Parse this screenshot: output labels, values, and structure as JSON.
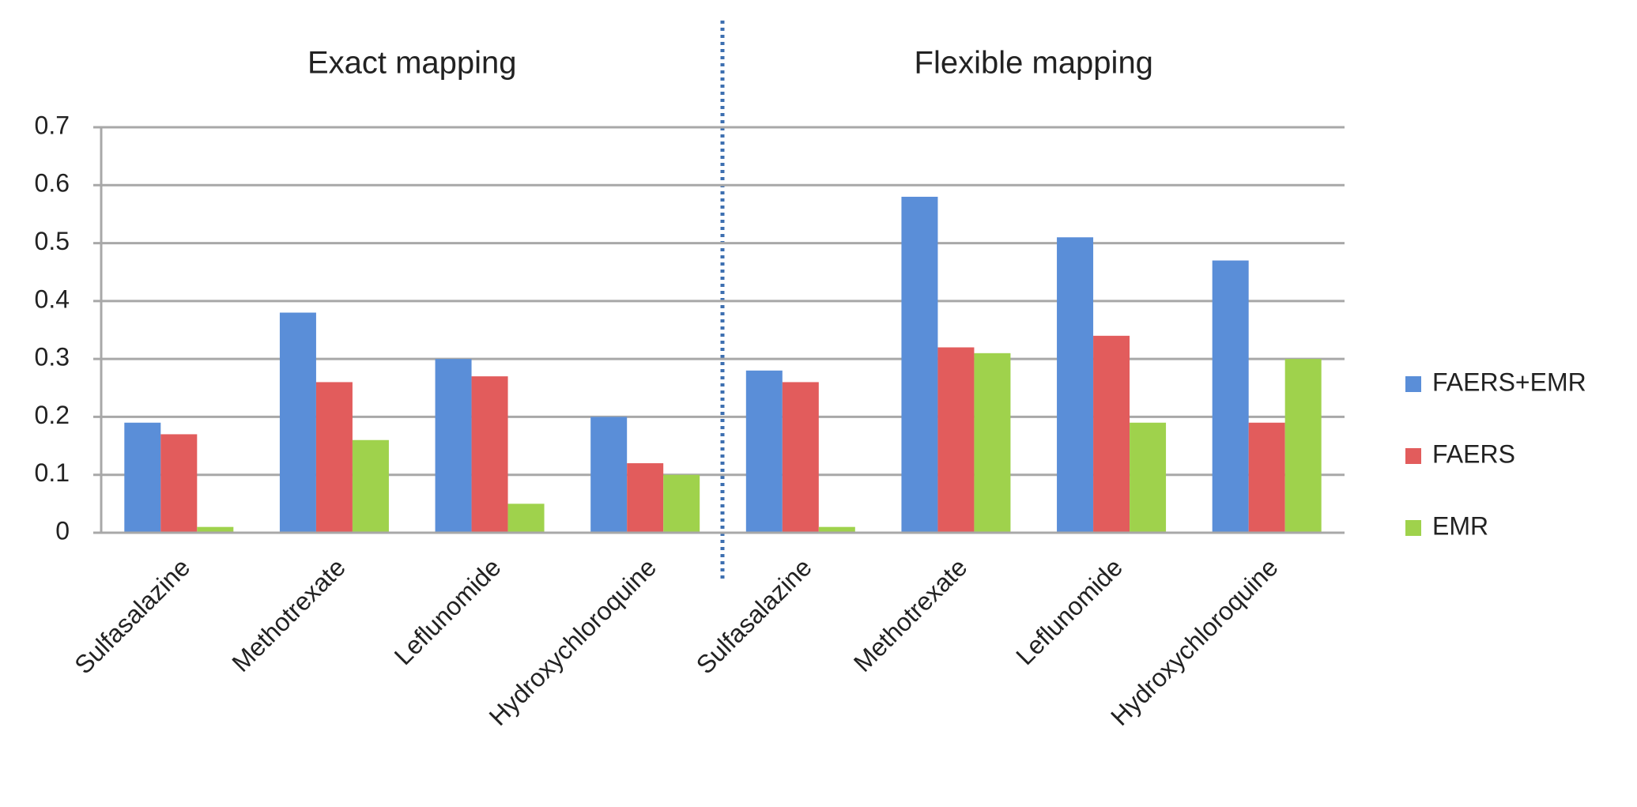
{
  "chart_data": {
    "type": "bar",
    "annotations": [
      "Exact mapping",
      "Flexible mapping"
    ],
    "categories": [
      "Sulfasalazine",
      "Methotrexate",
      "Leflunomide",
      "Hydroxychloroquine",
      "Sulfasalazine",
      "Methotrexate",
      "Leflunomide",
      "Hydroxychloroquine"
    ],
    "series": [
      {
        "name": "FAERS+EMR",
        "color": "#5a8ed8",
        "values": [
          0.19,
          0.38,
          0.3,
          0.2,
          0.28,
          0.58,
          0.51,
          0.47
        ]
      },
      {
        "name": "FAERS",
        "color": "#e25c5c",
        "values": [
          0.17,
          0.26,
          0.27,
          0.12,
          0.26,
          0.32,
          0.34,
          0.19
        ]
      },
      {
        "name": "EMR",
        "color": "#9fd24c",
        "values": [
          0.01,
          0.16,
          0.05,
          0.1,
          0.01,
          0.31,
          0.19,
          0.3
        ]
      }
    ],
    "ylim": [
      0,
      0.7
    ],
    "yticks": [
      0,
      0.1,
      0.2,
      0.3,
      0.4,
      0.5,
      0.6,
      0.7
    ],
    "grid": true,
    "legend": "right"
  }
}
